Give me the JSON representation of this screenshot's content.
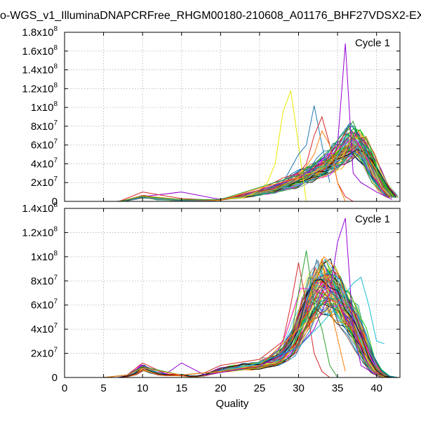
{
  "title": "o-WGS_v1_IlluminaDNAPCRFree_RHGM00180-210608_A01176_BHF27VDSX2-EX",
  "chart_data": [
    {
      "type": "line",
      "legend_label": "Cycle 1",
      "legend_placement": "top-right",
      "xlabel": "",
      "ylabel": "",
      "xlim": [
        0,
        43
      ],
      "ylim": [
        0,
        180000000
      ],
      "yticks": [
        {
          "v": 0,
          "mant": "0",
          "exp": ""
        },
        {
          "v": 20000000,
          "mant": "2x10",
          "exp": "7"
        },
        {
          "v": 40000000,
          "mant": "4x10",
          "exp": "7"
        },
        {
          "v": 60000000,
          "mant": "6x10",
          "exp": "7"
        },
        {
          "v": 80000000,
          "mant": "8x10",
          "exp": "7"
        },
        {
          "v": 100000000,
          "mant": "1x10",
          "exp": "8"
        },
        {
          "v": 120000000,
          "mant": "1.2x10",
          "exp": "8"
        },
        {
          "v": 140000000,
          "mant": "1.4x10",
          "exp": "8"
        },
        {
          "v": 160000000,
          "mant": "1.6x10",
          "exp": "8"
        },
        {
          "v": 180000000,
          "mant": "1.8x10",
          "exp": "8"
        }
      ],
      "grid": true,
      "highlight_series": [
        {
          "color": "#e8e800",
          "x": [
            7,
            10,
            15,
            20,
            23,
            25,
            26,
            27,
            28,
            29,
            30,
            31
          ],
          "y": [
            0,
            5000000,
            1000000,
            2000000,
            4000000,
            12000000,
            20000000,
            40000000,
            95000000,
            118000000,
            60000000,
            0
          ]
        },
        {
          "color": "#1f77b4",
          "x": [
            7,
            10,
            15,
            20,
            25,
            28,
            29,
            30,
            31,
            32,
            33,
            34
          ],
          "y": [
            0,
            4000000,
            1000000,
            1000000,
            12000000,
            20000000,
            35000000,
            50000000,
            60000000,
            102000000,
            60000000,
            20000000
          ]
        },
        {
          "color": "#9400d3",
          "x": [
            7,
            10,
            15,
            20,
            25,
            30,
            32,
            33,
            34,
            35,
            36,
            37,
            38,
            40,
            42
          ],
          "y": [
            0,
            5000000,
            10000000,
            2000000,
            12000000,
            25000000,
            35000000,
            45000000,
            50000000,
            60000000,
            168000000,
            30000000,
            20000000,
            10000000,
            2000000
          ]
        },
        {
          "color": "#d62728",
          "x": [
            7,
            10,
            15,
            20,
            25,
            28,
            30,
            31,
            32,
            33,
            34,
            35,
            36,
            37
          ],
          "y": [
            0,
            10000000,
            3000000,
            1000000,
            12000000,
            25000000,
            30000000,
            40000000,
            70000000,
            90000000,
            60000000,
            20000000,
            5000000,
            0
          ]
        },
        {
          "color": "#ff7f0e",
          "x": [
            7,
            10,
            15,
            20,
            25,
            30,
            32,
            33,
            34,
            35,
            36
          ],
          "y": [
            0,
            6000000,
            2000000,
            1000000,
            14000000,
            25000000,
            50000000,
            75000000,
            60000000,
            20000000,
            0
          ]
        },
        {
          "color": "#2ca02c",
          "x": [
            7,
            10,
            15,
            20,
            25,
            30,
            32,
            34,
            36,
            37,
            38,
            40,
            42
          ],
          "y": [
            0,
            5000000,
            2000000,
            2000000,
            15000000,
            28000000,
            40000000,
            55000000,
            75000000,
            85000000,
            60000000,
            30000000,
            5000000
          ]
        }
      ],
      "band": {
        "count": 70,
        "x": [
          7,
          8,
          9,
          10,
          11,
          12,
          13,
          14,
          15,
          16,
          17,
          18,
          19,
          20,
          21,
          22,
          23,
          24,
          25,
          26,
          27,
          28,
          29,
          30,
          31,
          32,
          33,
          34,
          35,
          36,
          37,
          38,
          39,
          40,
          41,
          42
        ],
        "y": [
          0,
          1000000,
          3000000,
          5000000,
          4000000,
          2000000,
          2000000,
          1000000,
          1000000,
          1000000,
          500000,
          500000,
          1000000,
          2000000,
          3000000,
          4000000,
          5000000,
          7000000,
          9000000,
          11000000,
          13000000,
          16000000,
          19000000,
          23000000,
          27000000,
          31000000,
          35000000,
          40000000,
          46000000,
          54000000,
          63000000,
          60000000,
          45000000,
          28000000,
          14000000,
          5000000
        ]
      }
    },
    {
      "type": "line",
      "legend_label": "Cycle 1",
      "legend_placement": "top-right",
      "xlabel": "Quality",
      "ylabel": "",
      "xlim": [
        0,
        43
      ],
      "ylim": [
        0,
        140000000
      ],
      "xticks": [
        "0",
        "5",
        "10",
        "15",
        "20",
        "25",
        "30",
        "35",
        "40"
      ],
      "yticks": [
        {
          "v": 0,
          "mant": "0",
          "exp": ""
        },
        {
          "v": 20000000,
          "mant": "2x10",
          "exp": "7"
        },
        {
          "v": 40000000,
          "mant": "4x10",
          "exp": "7"
        },
        {
          "v": 60000000,
          "mant": "6x10",
          "exp": "7"
        },
        {
          "v": 80000000,
          "mant": "8x10",
          "exp": "7"
        },
        {
          "v": 100000000,
          "mant": "1x10",
          "exp": "8"
        },
        {
          "v": 120000000,
          "mant": "1.2x10",
          "exp": "8"
        },
        {
          "v": 140000000,
          "mant": "1.4x10",
          "exp": "8"
        }
      ],
      "grid": true,
      "highlight_series": [
        {
          "color": "#d62728",
          "x": [
            1,
            5,
            8,
            10,
            13,
            15,
            18,
            20,
            25,
            28,
            29,
            30,
            31,
            32,
            33,
            34
          ],
          "y": [
            0,
            0,
            2000000,
            12000000,
            3000000,
            2000000,
            4000000,
            10000000,
            15000000,
            30000000,
            60000000,
            95000000,
            60000000,
            20000000,
            5000000,
            0
          ]
        },
        {
          "color": "#9400d3",
          "x": [
            1,
            5,
            8,
            10,
            13,
            15,
            18,
            20,
            25,
            30,
            32,
            34,
            35,
            36,
            37,
            38,
            40
          ],
          "y": [
            0,
            0,
            2000000,
            10000000,
            3000000,
            12000000,
            2000000,
            4000000,
            10000000,
            25000000,
            40000000,
            70000000,
            112000000,
            132000000,
            40000000,
            10000000,
            2000000
          ]
        },
        {
          "color": "#17becf",
          "x": [
            1,
            5,
            8,
            10,
            15,
            20,
            25,
            30,
            33,
            35,
            37,
            38,
            39,
            40,
            41
          ],
          "y": [
            0,
            0,
            2000000,
            8000000,
            2000000,
            5000000,
            12000000,
            25000000,
            45000000,
            60000000,
            78000000,
            83000000,
            60000000,
            30000000,
            28000000
          ]
        },
        {
          "color": "#2ca02c",
          "x": [
            1,
            5,
            8,
            10,
            15,
            20,
            25,
            29,
            30,
            31,
            32,
            33,
            34,
            35
          ],
          "y": [
            0,
            0,
            2000000,
            9000000,
            2000000,
            5000000,
            10000000,
            30000000,
            70000000,
            105000000,
            60000000,
            40000000,
            10000000,
            0
          ]
        },
        {
          "color": "#ff7f0e",
          "x": [
            1,
            5,
            8,
            10,
            15,
            20,
            25,
            30,
            32,
            33,
            34,
            36
          ],
          "y": [
            0,
            0,
            2000000,
            8000000,
            2000000,
            5000000,
            10000000,
            40000000,
            80000000,
            98000000,
            60000000,
            5000000
          ]
        }
      ],
      "band": {
        "count": 80,
        "x": [
          1,
          5,
          7,
          8,
          9,
          10,
          11,
          12,
          13,
          14,
          15,
          16,
          17,
          18,
          19,
          20,
          21,
          22,
          23,
          24,
          25,
          26,
          27,
          28,
          29,
          30,
          31,
          32,
          33,
          34,
          35,
          36,
          37,
          38,
          39,
          40,
          41,
          42
        ],
        "y": [
          0,
          0,
          0,
          1000000,
          3000000,
          8000000,
          5000000,
          3000000,
          2000000,
          2000000,
          2000000,
          1000000,
          1000000,
          2000000,
          4000000,
          6000000,
          7000000,
          8000000,
          9000000,
          9000000,
          10000000,
          12000000,
          14000000,
          18000000,
          26000000,
          40000000,
          55000000,
          68000000,
          75000000,
          72000000,
          65000000,
          55000000,
          45000000,
          30000000,
          15000000,
          5000000,
          1000000,
          0
        ]
      }
    }
  ]
}
